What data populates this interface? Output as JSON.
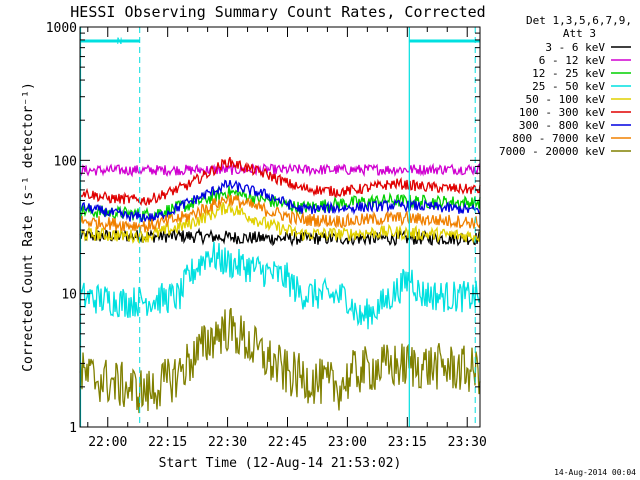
{
  "chart_data": {
    "type": "line",
    "title": "HESSI Observing Summary Count Rates, Corrected",
    "xlabel": "Start Time (12-Aug-14 21:53:02)",
    "ylabel": "Corrected Count Rate (s⁻¹ detector⁻¹)",
    "x_ticks": [
      "22:00",
      "22:15",
      "22:30",
      "22:45",
      "23:00",
      "23:15",
      "23:30"
    ],
    "x_tick_minutes": [
      0,
      15,
      30,
      45,
      60,
      75,
      90
    ],
    "xlim_minutes_after_22_00": [
      -6.95,
      93.2
    ],
    "y_scale": "log",
    "ylim": [
      1,
      1000
    ],
    "y_tick_labels": [
      "1",
      "10",
      "100",
      "1000"
    ],
    "y_tick_values": [
      1,
      10,
      100,
      1000
    ],
    "legend": {
      "placement": "right, outside plot",
      "header1": "Det 1,3,5,6,7,9,",
      "header2": "Att 3"
    },
    "timestamp": "14-Aug-2014 00:04",
    "annotations": [
      {
        "text": "N",
        "color": "#00e0e0",
        "at_minute": 1.5
      },
      {
        "label": "",
        "type": "marker-bar",
        "color": "#00e0e0",
        "from_minute": -6.95,
        "to_minute": 8.0
      },
      {
        "label": "",
        "type": "marker-bar",
        "color": "#00e0e0",
        "from_minute": 75.5,
        "to_minute": 93.2
      },
      {
        "label": "",
        "type": "vline-dashed",
        "color": "#00e0e0",
        "at_minute": 8.0
      },
      {
        "label": "",
        "type": "vline-solid",
        "color": "#00e0e0",
        "at_minute": 75.5
      },
      {
        "label": "",
        "type": "vline-dashed",
        "color": "#00e0e0",
        "at_minute": 92.0
      }
    ],
    "series": [
      {
        "name": "3 - 6 keV",
        "color": "#000000",
        "noise": 0.05,
        "points": [
          [
            -6.95,
            27
          ],
          [
            20,
            27
          ],
          [
            40,
            26
          ],
          [
            60,
            26
          ],
          [
            93.2,
            26
          ]
        ]
      },
      {
        "name": "6 - 12 keV",
        "color": "#d000d0",
        "noise": 0.04,
        "points": [
          [
            -6.95,
            84
          ],
          [
            30,
            85
          ],
          [
            60,
            85
          ],
          [
            93.2,
            86
          ]
        ]
      },
      {
        "name": "12 - 25 keV",
        "color": "#00d000",
        "noise": 0.05,
        "points": [
          [
            -6.95,
            42
          ],
          [
            10,
            39
          ],
          [
            20,
            46
          ],
          [
            30,
            58
          ],
          [
            40,
            50
          ],
          [
            48,
            44
          ],
          [
            60,
            48
          ],
          [
            70,
            50
          ],
          [
            80,
            49
          ],
          [
            93.2,
            48
          ]
        ]
      },
      {
        "name": "25 - 50 keV",
        "color": "#00e0e0",
        "noise": 0.12,
        "points": [
          [
            -6.95,
            9.5
          ],
          [
            5,
            8.6
          ],
          [
            18,
            9.5
          ],
          [
            20,
            13
          ],
          [
            25,
            20
          ],
          [
            30,
            17
          ],
          [
            35,
            16
          ],
          [
            45,
            13
          ],
          [
            48,
            10
          ],
          [
            60,
            9.5
          ],
          [
            63,
            6.5
          ],
          [
            68,
            8
          ],
          [
            73,
            11
          ],
          [
            76,
            13.5
          ],
          [
            78,
            10
          ],
          [
            85,
            9.5
          ],
          [
            93.2,
            9.5
          ]
        ]
      },
      {
        "name": "50 - 100 keV",
        "color": "#e0d000",
        "noise": 0.05,
        "points": [
          [
            -6.95,
            28
          ],
          [
            10,
            27
          ],
          [
            20,
            33
          ],
          [
            30,
            45
          ],
          [
            40,
            33
          ],
          [
            48,
            28
          ],
          [
            60,
            28
          ],
          [
            70,
            29
          ],
          [
            80,
            28
          ],
          [
            93.2,
            27
          ]
        ]
      },
      {
        "name": "100 - 300 keV",
        "color": "#e00000",
        "noise": 0.04,
        "points": [
          [
            -6.95,
            58
          ],
          [
            0,
            52
          ],
          [
            10,
            50
          ],
          [
            20,
            65
          ],
          [
            30,
            98
          ],
          [
            40,
            78
          ],
          [
            48,
            62
          ],
          [
            58,
            58
          ],
          [
            65,
            62
          ],
          [
            72,
            67
          ],
          [
            80,
            63
          ],
          [
            93.2,
            60
          ]
        ]
      },
      {
        "name": "300 - 800 keV",
        "color": "#0000e0",
        "noise": 0.04,
        "points": [
          [
            -6.95,
            45
          ],
          [
            5,
            38
          ],
          [
            12,
            37
          ],
          [
            20,
            48
          ],
          [
            30,
            66
          ],
          [
            40,
            55
          ],
          [
            48,
            43
          ],
          [
            60,
            44
          ],
          [
            72,
            46
          ],
          [
            80,
            45
          ],
          [
            93.2,
            42
          ]
        ]
      },
      {
        "name": "800 - 7000 keV",
        "color": "#f08000",
        "noise": 0.05,
        "points": [
          [
            -6.95,
            35
          ],
          [
            10,
            32
          ],
          [
            20,
            38
          ],
          [
            30,
            52
          ],
          [
            40,
            42
          ],
          [
            48,
            36
          ],
          [
            60,
            35
          ],
          [
            72,
            37
          ],
          [
            80,
            36
          ],
          [
            93.2,
            34
          ]
        ]
      },
      {
        "name": "7000 - 20000 keV",
        "color": "#808000",
        "noise": 0.18,
        "points": [
          [
            -6.95,
            2.5
          ],
          [
            10,
            1.8
          ],
          [
            17,
            2.4
          ],
          [
            20,
            3.0
          ],
          [
            24,
            4.0
          ],
          [
            27,
            5.0
          ],
          [
            30,
            5.5
          ],
          [
            33,
            4.8
          ],
          [
            36,
            4.0
          ],
          [
            40,
            3.2
          ],
          [
            45,
            2.5
          ],
          [
            52,
            2.2
          ],
          [
            58,
            2.0
          ],
          [
            62,
            2.6
          ],
          [
            68,
            2.8
          ],
          [
            75,
            2.9
          ],
          [
            85,
            2.8
          ],
          [
            93.2,
            2.6
          ]
        ]
      }
    ]
  }
}
